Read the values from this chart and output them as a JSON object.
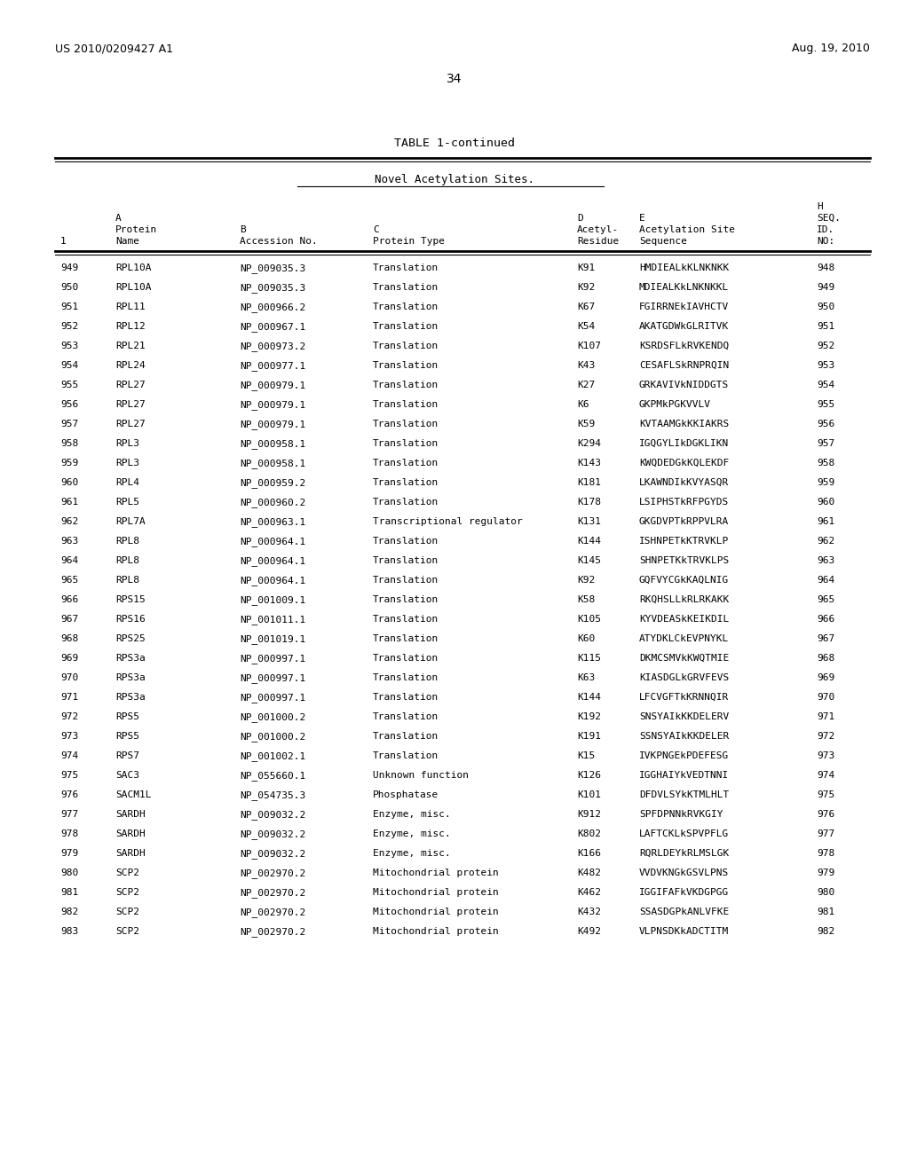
{
  "patent_number": "US 2010/0209427 A1",
  "date": "Aug. 19, 2010",
  "page_number": "34",
  "table_title": "TABLE 1-continued",
  "table_subtitle": "Novel Acetylation Sites.",
  "rows": [
    [
      "949",
      "RPL10A",
      "NP_009035.3",
      "Translation",
      "K91",
      "HMDIEALkKLNKNKK",
      "948"
    ],
    [
      "950",
      "RPL10A",
      "NP_009035.3",
      "Translation",
      "K92",
      "MDIEALKkLNKNKKL",
      "949"
    ],
    [
      "951",
      "RPL11",
      "NP_000966.2",
      "Translation",
      "K67",
      "FGIRRNEkIAVHCTV",
      "950"
    ],
    [
      "952",
      "RPL12",
      "NP_000967.1",
      "Translation",
      "K54",
      "AKATGDWkGLRITVK",
      "951"
    ],
    [
      "953",
      "RPL21",
      "NP_000973.2",
      "Translation",
      "K107",
      "KSRDSFLkRVKENDQ",
      "952"
    ],
    [
      "954",
      "RPL24",
      "NP_000977.1",
      "Translation",
      "K43",
      "CESAFLSkRNPRQIN",
      "953"
    ],
    [
      "955",
      "RPL27",
      "NP_000979.1",
      "Translation",
      "K27",
      "GRKAVIVkNIDDGTS",
      "954"
    ],
    [
      "956",
      "RPL27",
      "NP_000979.1",
      "Translation",
      "K6",
      "GKPMkPGKVVLV",
      "955"
    ],
    [
      "957",
      "RPL27",
      "NP_000979.1",
      "Translation",
      "K59",
      "KVTAAMGkKKIAKRS",
      "956"
    ],
    [
      "958",
      "RPL3",
      "NP_000958.1",
      "Translation",
      "K294",
      "IGQGYLIkDGKLIKN",
      "957"
    ],
    [
      "959",
      "RPL3",
      "NP_000958.1",
      "Translation",
      "K143",
      "KWQDEDGkKQLEKDF",
      "958"
    ],
    [
      "960",
      "RPL4",
      "NP_000959.2",
      "Translation",
      "K181",
      "LKAWNDIkKVYASQR",
      "959"
    ],
    [
      "961",
      "RPL5",
      "NP_000960.2",
      "Translation",
      "K178",
      "LSIPHSTkRFPGYDS",
      "960"
    ],
    [
      "962",
      "RPL7A",
      "NP_000963.1",
      "Transcriptional regulator",
      "K131",
      "GKGDVPTkRPPVLRA",
      "961"
    ],
    [
      "963",
      "RPL8",
      "NP_000964.1",
      "Translation",
      "K144",
      "ISHNPETkKTRVKLP",
      "962"
    ],
    [
      "964",
      "RPL8",
      "NP_000964.1",
      "Translation",
      "K145",
      "SHNPETKkTRVKLPS",
      "963"
    ],
    [
      "965",
      "RPL8",
      "NP_000964.1",
      "Translation",
      "K92",
      "GQFVYCGkKAQLNIG",
      "964"
    ],
    [
      "966",
      "RPS15",
      "NP_001009.1",
      "Translation",
      "K58",
      "RKQHSLLkRLRKAKK",
      "965"
    ],
    [
      "967",
      "RPS16",
      "NP_001011.1",
      "Translation",
      "K105",
      "KYVDEASkKEIKDIL",
      "966"
    ],
    [
      "968",
      "RPS25",
      "NP_001019.1",
      "Translation",
      "K60",
      "ATYDKLCkEVPNYKL",
      "967"
    ],
    [
      "969",
      "RPS3a",
      "NP_000997.1",
      "Translation",
      "K115",
      "DKMCSMVkKWQTMIE",
      "968"
    ],
    [
      "970",
      "RPS3a",
      "NP_000997.1",
      "Translation",
      "K63",
      "KIASDGLkGRVFEVS",
      "969"
    ],
    [
      "971",
      "RPS3a",
      "NP_000997.1",
      "Translation",
      "K144",
      "LFCVGFTkKRNNQIR",
      "970"
    ],
    [
      "972",
      "RPS5",
      "NP_001000.2",
      "Translation",
      "K192",
      "SNSYAIkKKDELERV",
      "971"
    ],
    [
      "973",
      "RPS5",
      "NP_001000.2",
      "Translation",
      "K191",
      "SSNSYAIkKKDELER",
      "972"
    ],
    [
      "974",
      "RPS7",
      "NP_001002.1",
      "Translation",
      "K15",
      "IVKPNGEkPDEFESG",
      "973"
    ],
    [
      "975",
      "SAC3",
      "NP_055660.1",
      "Unknown function",
      "K126",
      "IGGHAIYkVEDTNNI",
      "974"
    ],
    [
      "976",
      "SACM1L",
      "NP_054735.3",
      "Phosphatase",
      "K101",
      "DFDVLSYkKTMLHLT",
      "975"
    ],
    [
      "977",
      "SARDH",
      "NP_009032.2",
      "Enzyme, misc.",
      "K912",
      "SPFDPNNkRVKGIY",
      "976"
    ],
    [
      "978",
      "SARDH",
      "NP_009032.2",
      "Enzyme, misc.",
      "K802",
      "LAFTCKLkSPVPFLG",
      "977"
    ],
    [
      "979",
      "SARDH",
      "NP_009032.2",
      "Enzyme, misc.",
      "K166",
      "RQRLDEYkRLMSLGK",
      "978"
    ],
    [
      "980",
      "SCP2",
      "NP_002970.2",
      "Mitochondrial protein",
      "K482",
      "VVDVKNGkGSVLPNS",
      "979"
    ],
    [
      "981",
      "SCP2",
      "NP_002970.2",
      "Mitochondrial protein",
      "K462",
      "IGGIFAFkVKDGPGG",
      "980"
    ],
    [
      "982",
      "SCP2",
      "NP_002970.2",
      "Mitochondrial protein",
      "K432",
      "SSASDGPkANLVFKE",
      "981"
    ],
    [
      "983",
      "SCP2",
      "NP_002970.2",
      "Mitochondrial protein",
      "K492",
      "VLPNSDKkADCTITM",
      "982"
    ]
  ],
  "background_color": "#ffffff",
  "text_color": "#000000"
}
